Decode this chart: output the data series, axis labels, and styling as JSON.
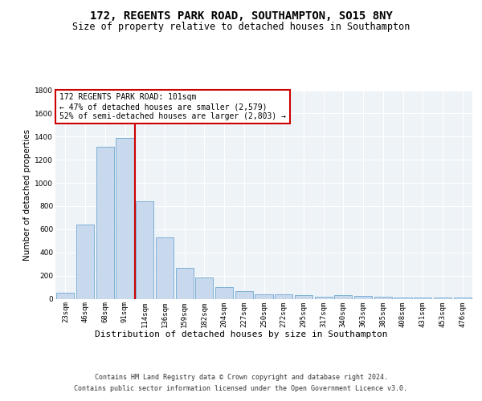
{
  "title": "172, REGENTS PARK ROAD, SOUTHAMPTON, SO15 8NY",
  "subtitle": "Size of property relative to detached houses in Southampton",
  "xlabel": "Distribution of detached houses by size in Southampton",
  "ylabel": "Number of detached properties",
  "categories": [
    "23sqm",
    "46sqm",
    "68sqm",
    "91sqm",
    "114sqm",
    "136sqm",
    "159sqm",
    "182sqm",
    "204sqm",
    "227sqm",
    "250sqm",
    "272sqm",
    "295sqm",
    "317sqm",
    "340sqm",
    "363sqm",
    "385sqm",
    "408sqm",
    "431sqm",
    "453sqm",
    "476sqm"
  ],
  "values": [
    50,
    640,
    1310,
    1390,
    840,
    530,
    270,
    185,
    100,
    65,
    35,
    35,
    30,
    20,
    30,
    25,
    20,
    10,
    10,
    10,
    10
  ],
  "bar_color": "#c9d9ed",
  "bar_edge_color": "#6fa8d0",
  "vline_color": "#cc0000",
  "annotation_text": "172 REGENTS PARK ROAD: 101sqm\n← 47% of detached houses are smaller (2,579)\n52% of semi-detached houses are larger (2,803) →",
  "annotation_box_color": "#ffffff",
  "annotation_box_edge": "#cc0000",
  "ylim": [
    0,
    1800
  ],
  "yticks": [
    0,
    200,
    400,
    600,
    800,
    1000,
    1200,
    1400,
    1600,
    1800
  ],
  "footer1": "Contains HM Land Registry data © Crown copyright and database right 2024.",
  "footer2": "Contains public sector information licensed under the Open Government Licence v3.0.",
  "bg_color": "#eef3f8",
  "fig_bg": "#ffffff",
  "grid_color": "#ffffff",
  "title_fontsize": 10,
  "subtitle_fontsize": 8.5,
  "ylabel_fontsize": 7.5,
  "xlabel_fontsize": 8,
  "tick_fontsize": 6.5,
  "annotation_fontsize": 7,
  "footer_fontsize": 6
}
